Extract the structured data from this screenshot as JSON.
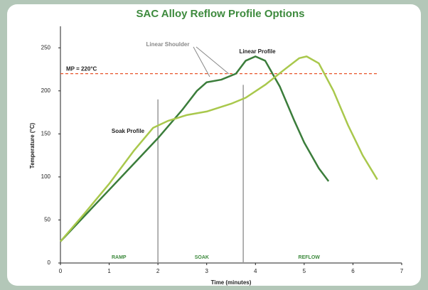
{
  "chart_data": {
    "type": "line",
    "title": "SAC Alloy Reflow Profile Options",
    "xlabel": "Time (minutes)",
    "ylabel": "Temperature (°C)",
    "xlim": [
      0,
      7
    ],
    "xticks": [
      0,
      1,
      2,
      3,
      4,
      5,
      6,
      7
    ],
    "ylim": [
      0,
      275
    ],
    "yticks": [
      0,
      50,
      100,
      150,
      200,
      250
    ],
    "grid": false,
    "series": [
      {
        "name": "Linear Profile",
        "color": "#3b7d3b",
        "x": [
          0,
          0.5,
          1,
          1.5,
          2,
          2.5,
          2.8,
          3,
          3.3,
          3.6,
          3.8,
          4,
          4.2,
          4.5,
          4.8,
          5,
          5.3,
          5.5
        ],
        "values": [
          25,
          55,
          85,
          115,
          145,
          178,
          200,
          210,
          213,
          220,
          235,
          240,
          235,
          205,
          165,
          140,
          110,
          95
        ]
      },
      {
        "name": "Soak Profile",
        "color": "#a9c84c",
        "x": [
          0,
          0.5,
          1,
          1.5,
          1.9,
          2.2,
          2.6,
          3,
          3.5,
          3.8,
          4.2,
          4.6,
          4.9,
          5.05,
          5.3,
          5.6,
          5.9,
          6.2,
          6.5
        ],
        "values": [
          25,
          58,
          92,
          130,
          157,
          165,
          172,
          176,
          185,
          192,
          207,
          225,
          238,
          240,
          232,
          200,
          160,
          125,
          97
        ]
      }
    ],
    "threshold": {
      "label": "MP = 220°C",
      "value": 220,
      "color": "#e8542a"
    },
    "shoulder_label": "Linear Shoulder",
    "zone_boundaries": [
      {
        "x": 2,
        "y": 190
      },
      {
        "x": 3.75,
        "y": 207
      }
    ],
    "zones": [
      {
        "label": "RAMP",
        "x": 1.2
      },
      {
        "label": "SOAK",
        "x": 2.9
      },
      {
        "label": "REFLOW",
        "x": 5.1
      }
    ]
  }
}
